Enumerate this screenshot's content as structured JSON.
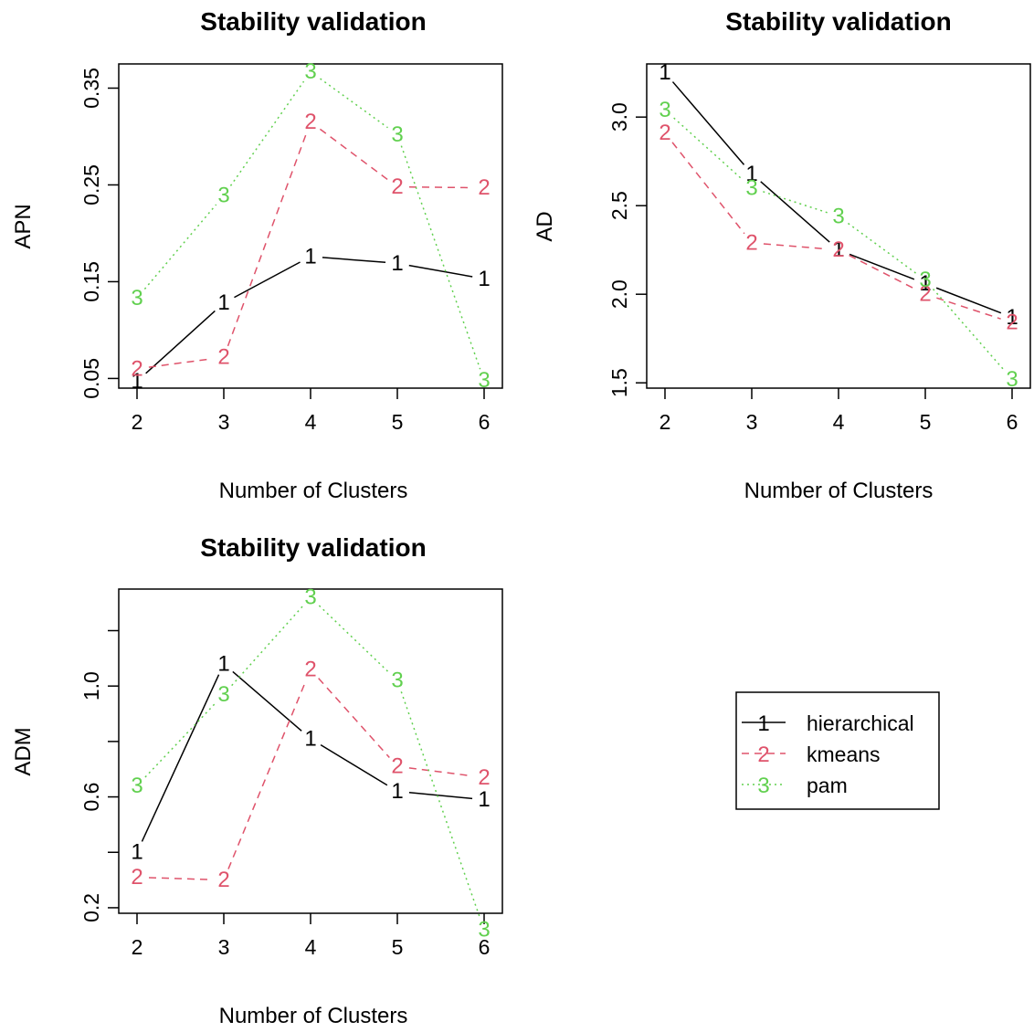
{
  "legend": {
    "entries": [
      {
        "label": "hierarchical",
        "symbol": "1",
        "color": "#000000",
        "dash": "solid"
      },
      {
        "label": "kmeans",
        "symbol": "2",
        "color": "#DF536B",
        "dash": "dashed"
      },
      {
        "label": "pam",
        "symbol": "3",
        "color": "#61D04F",
        "dash": "dotted"
      }
    ],
    "placement": "bottom-right panel"
  },
  "chart_data": [
    {
      "type": "line",
      "title": "Stability validation",
      "xlabel": "Number of Clusters",
      "ylabel": "APN",
      "x": [
        2,
        3,
        4,
        5,
        6
      ],
      "x_ticks": [
        "2",
        "3",
        "4",
        "5",
        "6"
      ],
      "y_ticks": [
        0.05,
        0.15,
        0.25,
        0.35
      ],
      "y_tick_labels": [
        "0.05",
        "0.15",
        "0.25",
        "0.35"
      ],
      "ylim": [
        0.04,
        0.375
      ],
      "series": [
        {
          "name": "hierarchical",
          "symbol": "1",
          "values": [
            0.047,
            0.128,
            0.176,
            0.169,
            0.153
          ]
        },
        {
          "name": "kmeans",
          "symbol": "2",
          "values": [
            0.06,
            0.072,
            0.315,
            0.248,
            0.247
          ]
        },
        {
          "name": "pam",
          "symbol": "3",
          "values": [
            0.133,
            0.239,
            0.367,
            0.302,
            0.048
          ]
        }
      ]
    },
    {
      "type": "line",
      "title": "Stability validation",
      "xlabel": "Number of Clusters",
      "ylabel": "AD",
      "x": [
        2,
        3,
        4,
        5,
        6
      ],
      "x_ticks": [
        "2",
        "3",
        "4",
        "5",
        "6"
      ],
      "y_ticks": [
        1.5,
        2.0,
        2.5,
        3.0
      ],
      "y_tick_labels": [
        "1.5",
        "2.0",
        "2.5",
        "3.0"
      ],
      "ylim": [
        1.47,
        3.3
      ],
      "series": [
        {
          "name": "hierarchical",
          "symbol": "1",
          "values": [
            3.25,
            2.68,
            2.25,
            2.06,
            1.87
          ]
        },
        {
          "name": "kmeans",
          "symbol": "2",
          "values": [
            2.91,
            2.29,
            2.25,
            2.0,
            1.84
          ]
        },
        {
          "name": "pam",
          "symbol": "3",
          "values": [
            3.04,
            2.6,
            2.44,
            2.08,
            1.52
          ]
        }
      ]
    },
    {
      "type": "line",
      "title": "Stability validation",
      "xlabel": "Number of Clusters",
      "ylabel": "ADM",
      "x": [
        2,
        3,
        4,
        5,
        6
      ],
      "x_ticks": [
        "2",
        "3",
        "4",
        "5",
        "6"
      ],
      "y_ticks": [
        0.2,
        0.6,
        1.0
      ],
      "y_tick_labels": [
        "0.2",
        "0.6",
        "1.0"
      ],
      "extra_y_ticks": [
        0.4,
        0.8,
        1.2
      ],
      "ylim": [
        0.18,
        1.35
      ],
      "series": [
        {
          "name": "hierarchical",
          "symbol": "1",
          "values": [
            0.4,
            1.08,
            0.81,
            0.62,
            0.59
          ]
        },
        {
          "name": "kmeans",
          "symbol": "2",
          "values": [
            0.31,
            0.3,
            1.06,
            0.71,
            0.67
          ]
        },
        {
          "name": "pam",
          "symbol": "3",
          "values": [
            0.64,
            0.97,
            1.32,
            1.02,
            0.12
          ]
        }
      ]
    }
  ]
}
